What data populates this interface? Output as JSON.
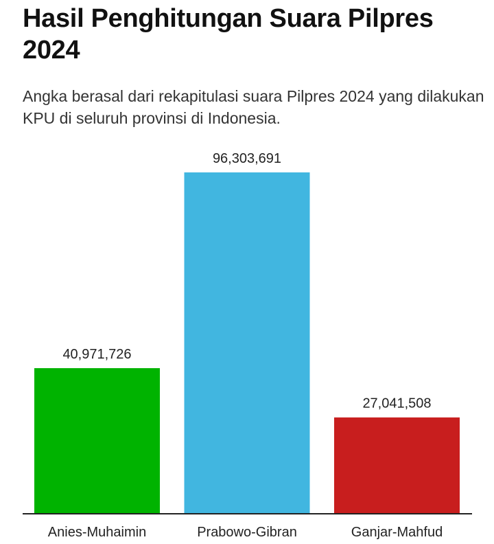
{
  "title": "Hasil Penghitungan Suara Pilpres 2024",
  "subtitle": "Angka berasal dari rekapitulasi suara Pilpres 2024 yang dilakukan KPU di seluruh provinsi di Indonesia.",
  "chart_data": {
    "type": "bar",
    "title": "Hasil Penghitungan Suara Pilpres 2024",
    "subtitle": "Angka berasal dari rekapitulasi suara Pilpres 2024 yang dilakukan KPU di seluruh provinsi di Indonesia.",
    "categories": [
      "Anies-Muhaimin",
      "Prabowo-Gibran",
      "Ganjar-Mahfud"
    ],
    "values": [
      40971726,
      96303691,
      27041508
    ],
    "value_labels": [
      "40,971,726",
      "96,303,691",
      "27,041,508"
    ],
    "colors": [
      "#00b300",
      "#41b6e0",
      "#c81e1e"
    ],
    "xlabel": "",
    "ylabel": "",
    "ylim": [
      0,
      96303691
    ],
    "grid": false,
    "legend": "none"
  }
}
